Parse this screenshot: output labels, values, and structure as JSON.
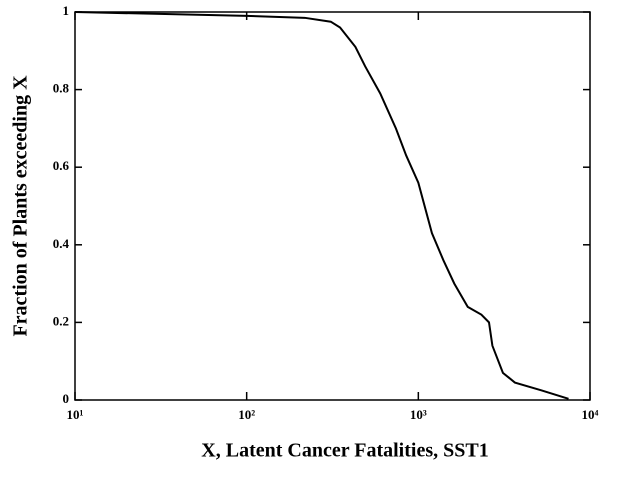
{
  "chart_data": {
    "type": "line",
    "xlabel": "X, Latent Cancer Fatalities, SST1",
    "ylabel": "Fraction of Plants exceeding X",
    "xscale": "log",
    "xlim": [
      10,
      10000
    ],
    "xticks": [
      {
        "value": 10,
        "label": "10¹"
      },
      {
        "value": 100,
        "label": "10²"
      },
      {
        "value": 1000,
        "label": "10³"
      },
      {
        "value": 10000,
        "label": "10⁴"
      }
    ],
    "ylim": [
      0,
      1
    ],
    "yticks": [
      0,
      0.2,
      0.4,
      0.6,
      0.8,
      1
    ],
    "grid": false,
    "series": [
      {
        "name": null,
        "color": "#000000",
        "x": [
          10,
          100,
          218,
          309,
          350,
          430,
          490,
          600,
          740,
          850,
          1000,
          1200,
          1400,
          1620,
          1940,
          2330,
          2580,
          2700,
          3110,
          3650,
          5200,
          7500
        ],
        "values": [
          1,
          0.99,
          0.985,
          0.975,
          0.96,
          0.91,
          0.86,
          0.79,
          0.7,
          0.63,
          0.56,
          0.43,
          0.36,
          0.3,
          0.24,
          0.22,
          0.2,
          0.14,
          0.07,
          0.045,
          0.025,
          0.003
        ]
      }
    ]
  }
}
